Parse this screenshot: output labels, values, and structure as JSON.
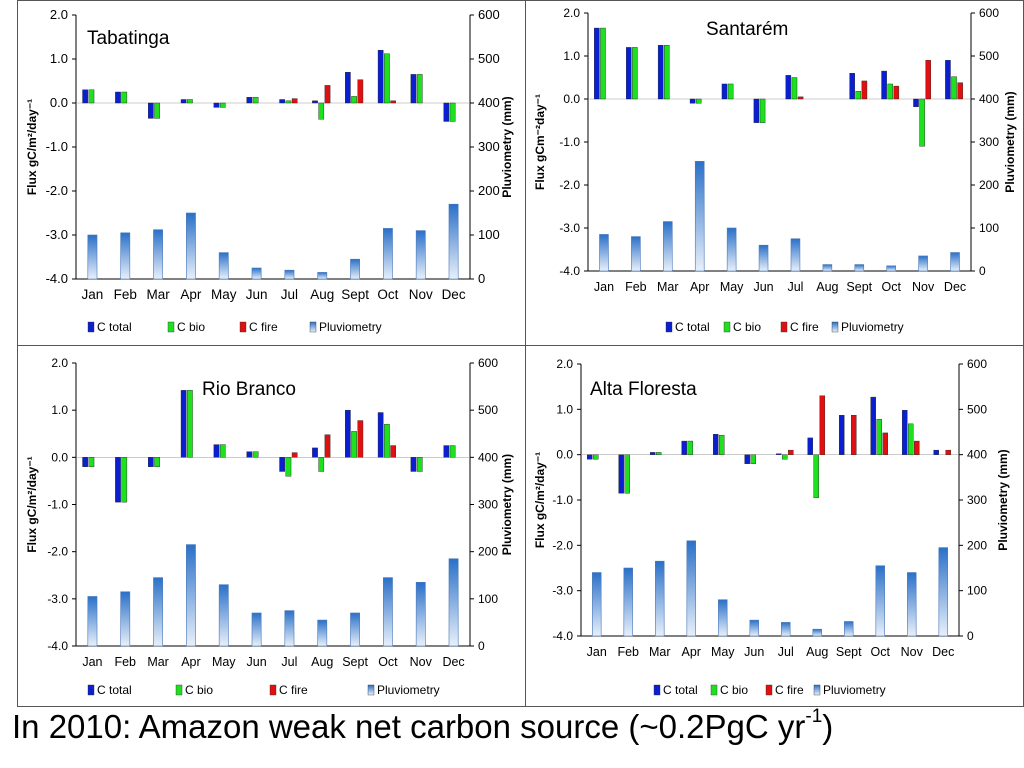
{
  "colors": {
    "c_total": "#0a1fd0",
    "c_bio": "#1ee01e",
    "c_fire": "#e01010",
    "pluvio_top": "#2a70c8",
    "pluvio_bottom": "#e8f0fa"
  },
  "chart_data": [
    {
      "type": "bar",
      "title": "Tabatinga",
      "categories": [
        "Jan",
        "Feb",
        "Mar",
        "Apr",
        "May",
        "Jun",
        "Jul",
        "Aug",
        "Sept",
        "Oct",
        "Nov",
        "Dec"
      ],
      "ylabel": "Flux gC/m²/day⁻¹",
      "y2label": "Pluviometry (mm)",
      "ylim": [
        -4,
        2
      ],
      "y2lim": [
        0,
        600
      ],
      "yticks": [
        "2.0",
        "1.0",
        "0.0",
        "-1.0",
        "-2.0",
        "-3.0",
        "-4.0"
      ],
      "y2ticks": [
        "600",
        "500",
        "400",
        "300",
        "200",
        "100",
        "0"
      ],
      "series": [
        {
          "name": "C total",
          "values": [
            0.3,
            0.25,
            -0.35,
            0.08,
            -0.1,
            0.13,
            0.08,
            0.05,
            0.7,
            1.2,
            0.65,
            -0.42
          ]
        },
        {
          "name": "C bio",
          "values": [
            0.3,
            0.25,
            -0.35,
            0.08,
            -0.1,
            0.13,
            0.05,
            -0.37,
            0.15,
            1.12,
            0.65,
            -0.42
          ]
        },
        {
          "name": "C fire",
          "values": [
            0,
            0,
            0,
            0,
            0,
            0,
            0.1,
            0.4,
            0.53,
            0.05,
            0,
            0
          ]
        },
        {
          "name": "Pluviometry",
          "values": [
            100,
            105,
            112,
            150,
            60,
            25,
            20,
            15,
            45,
            115,
            110,
            170
          ]
        }
      ],
      "legend": [
        "C total",
        "C bio",
        "C fire",
        "Pluviometry"
      ]
    },
    {
      "type": "bar",
      "title": "Santarém",
      "categories": [
        "Jan",
        "Feb",
        "Mar",
        "Apr",
        "May",
        "Jun",
        "Jul",
        "Aug",
        "Sept",
        "Oct",
        "Nov",
        "Dec"
      ],
      "ylabel": "Flux gCm⁻²day⁻¹",
      "y2label": "Pluviometry (mm)",
      "ylim": [
        -4,
        2
      ],
      "y2lim": [
        0,
        600
      ],
      "yticks": [
        "2.0",
        "1.0",
        "0.0",
        "-1.0",
        "-2.0",
        "-3.0",
        "-4.0"
      ],
      "y2ticks": [
        "600",
        "500",
        "400",
        "300",
        "200",
        "100",
        "0"
      ],
      "series": [
        {
          "name": "C total",
          "values": [
            1.65,
            1.2,
            1.25,
            -0.1,
            0.35,
            -0.55,
            0.55,
            0,
            0.6,
            0.65,
            -0.18,
            0.9
          ]
        },
        {
          "name": "C bio",
          "values": [
            1.65,
            1.2,
            1.25,
            -0.1,
            0.35,
            -0.55,
            0.5,
            0,
            0.18,
            0.35,
            -1.1,
            0.52
          ]
        },
        {
          "name": "C fire",
          "values": [
            0,
            0,
            0,
            0,
            0,
            0,
            0.05,
            0,
            0.42,
            0.3,
            0.9,
            0.38
          ]
        },
        {
          "name": "Pluviometry",
          "values": [
            85,
            80,
            115,
            255,
            100,
            60,
            75,
            15,
            15,
            12,
            35,
            43
          ]
        }
      ],
      "legend": [
        "C total",
        "C bio",
        "C fire",
        "Pluviometry"
      ]
    },
    {
      "type": "bar",
      "title": "Rio Branco",
      "categories": [
        "Jan",
        "Feb",
        "Mar",
        "Apr",
        "May",
        "Jun",
        "Jul",
        "Aug",
        "Sept",
        "Oct",
        "Nov",
        "Dec"
      ],
      "ylabel": "Flux gC/m²/day⁻¹",
      "y2label": "Pluviometry (mm)",
      "ylim": [
        -4,
        2
      ],
      "y2lim": [
        0,
        600
      ],
      "yticks": [
        "2.0",
        "1.0",
        "0.0",
        "-1.0",
        "-2.0",
        "-3.0",
        "-4.0"
      ],
      "y2ticks": [
        "600",
        "500",
        "400",
        "300",
        "200",
        "100",
        "0"
      ],
      "series": [
        {
          "name": "C total",
          "values": [
            -0.2,
            -0.95,
            -0.2,
            1.42,
            0.27,
            0.12,
            -0.3,
            0.2,
            1.0,
            0.95,
            -0.3,
            0.25
          ]
        },
        {
          "name": "C bio",
          "values": [
            -0.2,
            -0.95,
            -0.2,
            1.42,
            0.27,
            0.12,
            -0.4,
            -0.3,
            0.55,
            0.7,
            -0.3,
            0.25
          ]
        },
        {
          "name": "C fire",
          "values": [
            0,
            0,
            0,
            0,
            0,
            0,
            0.1,
            0.48,
            0.78,
            0.25,
            0,
            0
          ]
        },
        {
          "name": "Pluviometry",
          "values": [
            105,
            115,
            145,
            215,
            130,
            70,
            75,
            55,
            70,
            145,
            135,
            185
          ]
        }
      ],
      "legend": [
        "C total",
        "C bio",
        "C fire",
        "Pluviometry"
      ]
    },
    {
      "type": "bar",
      "title": "Alta Floresta",
      "categories": [
        "Jan",
        "Feb",
        "Mar",
        "Apr",
        "May",
        "Jun",
        "Jul",
        "Aug",
        "Sept",
        "Oct",
        "Nov",
        "Dec"
      ],
      "ylabel": "Flux gC/m²/day⁻¹",
      "y2label": "Pluviometry (mm)",
      "ylim": [
        -4,
        2
      ],
      "y2lim": [
        0,
        600
      ],
      "yticks": [
        "2.0",
        "1.0",
        "0.0",
        "-1.0",
        "-2.0",
        "-3.0",
        "-4.0"
      ],
      "y2ticks": [
        "600",
        "500",
        "400",
        "300",
        "200",
        "100",
        "0"
      ],
      "series": [
        {
          "name": "C total",
          "values": [
            -0.1,
            -0.85,
            0.05,
            0.3,
            0.45,
            -0.2,
            0.02,
            0.37,
            0.87,
            1.27,
            0.98,
            0.1
          ]
        },
        {
          "name": "C bio",
          "values": [
            -0.1,
            -0.85,
            0.05,
            0.3,
            0.43,
            -0.2,
            -0.1,
            -0.95,
            0,
            0.78,
            0.68,
            0
          ]
        },
        {
          "name": "C fire",
          "values": [
            0,
            0,
            0,
            0,
            0,
            0,
            0.1,
            1.3,
            0.87,
            0.48,
            0.3,
            0.1
          ]
        },
        {
          "name": "Pluviometry",
          "values": [
            140,
            150,
            165,
            210,
            80,
            35,
            30,
            15,
            32,
            155,
            140,
            195
          ]
        }
      ],
      "legend": [
        "C total",
        "C bio",
        "C fire",
        "Pluviometry"
      ]
    }
  ],
  "footer": {
    "text": "In 2010: Amazon weak net carbon source (~0.2PgC yr",
    "sup": "-1",
    "close": ")"
  }
}
